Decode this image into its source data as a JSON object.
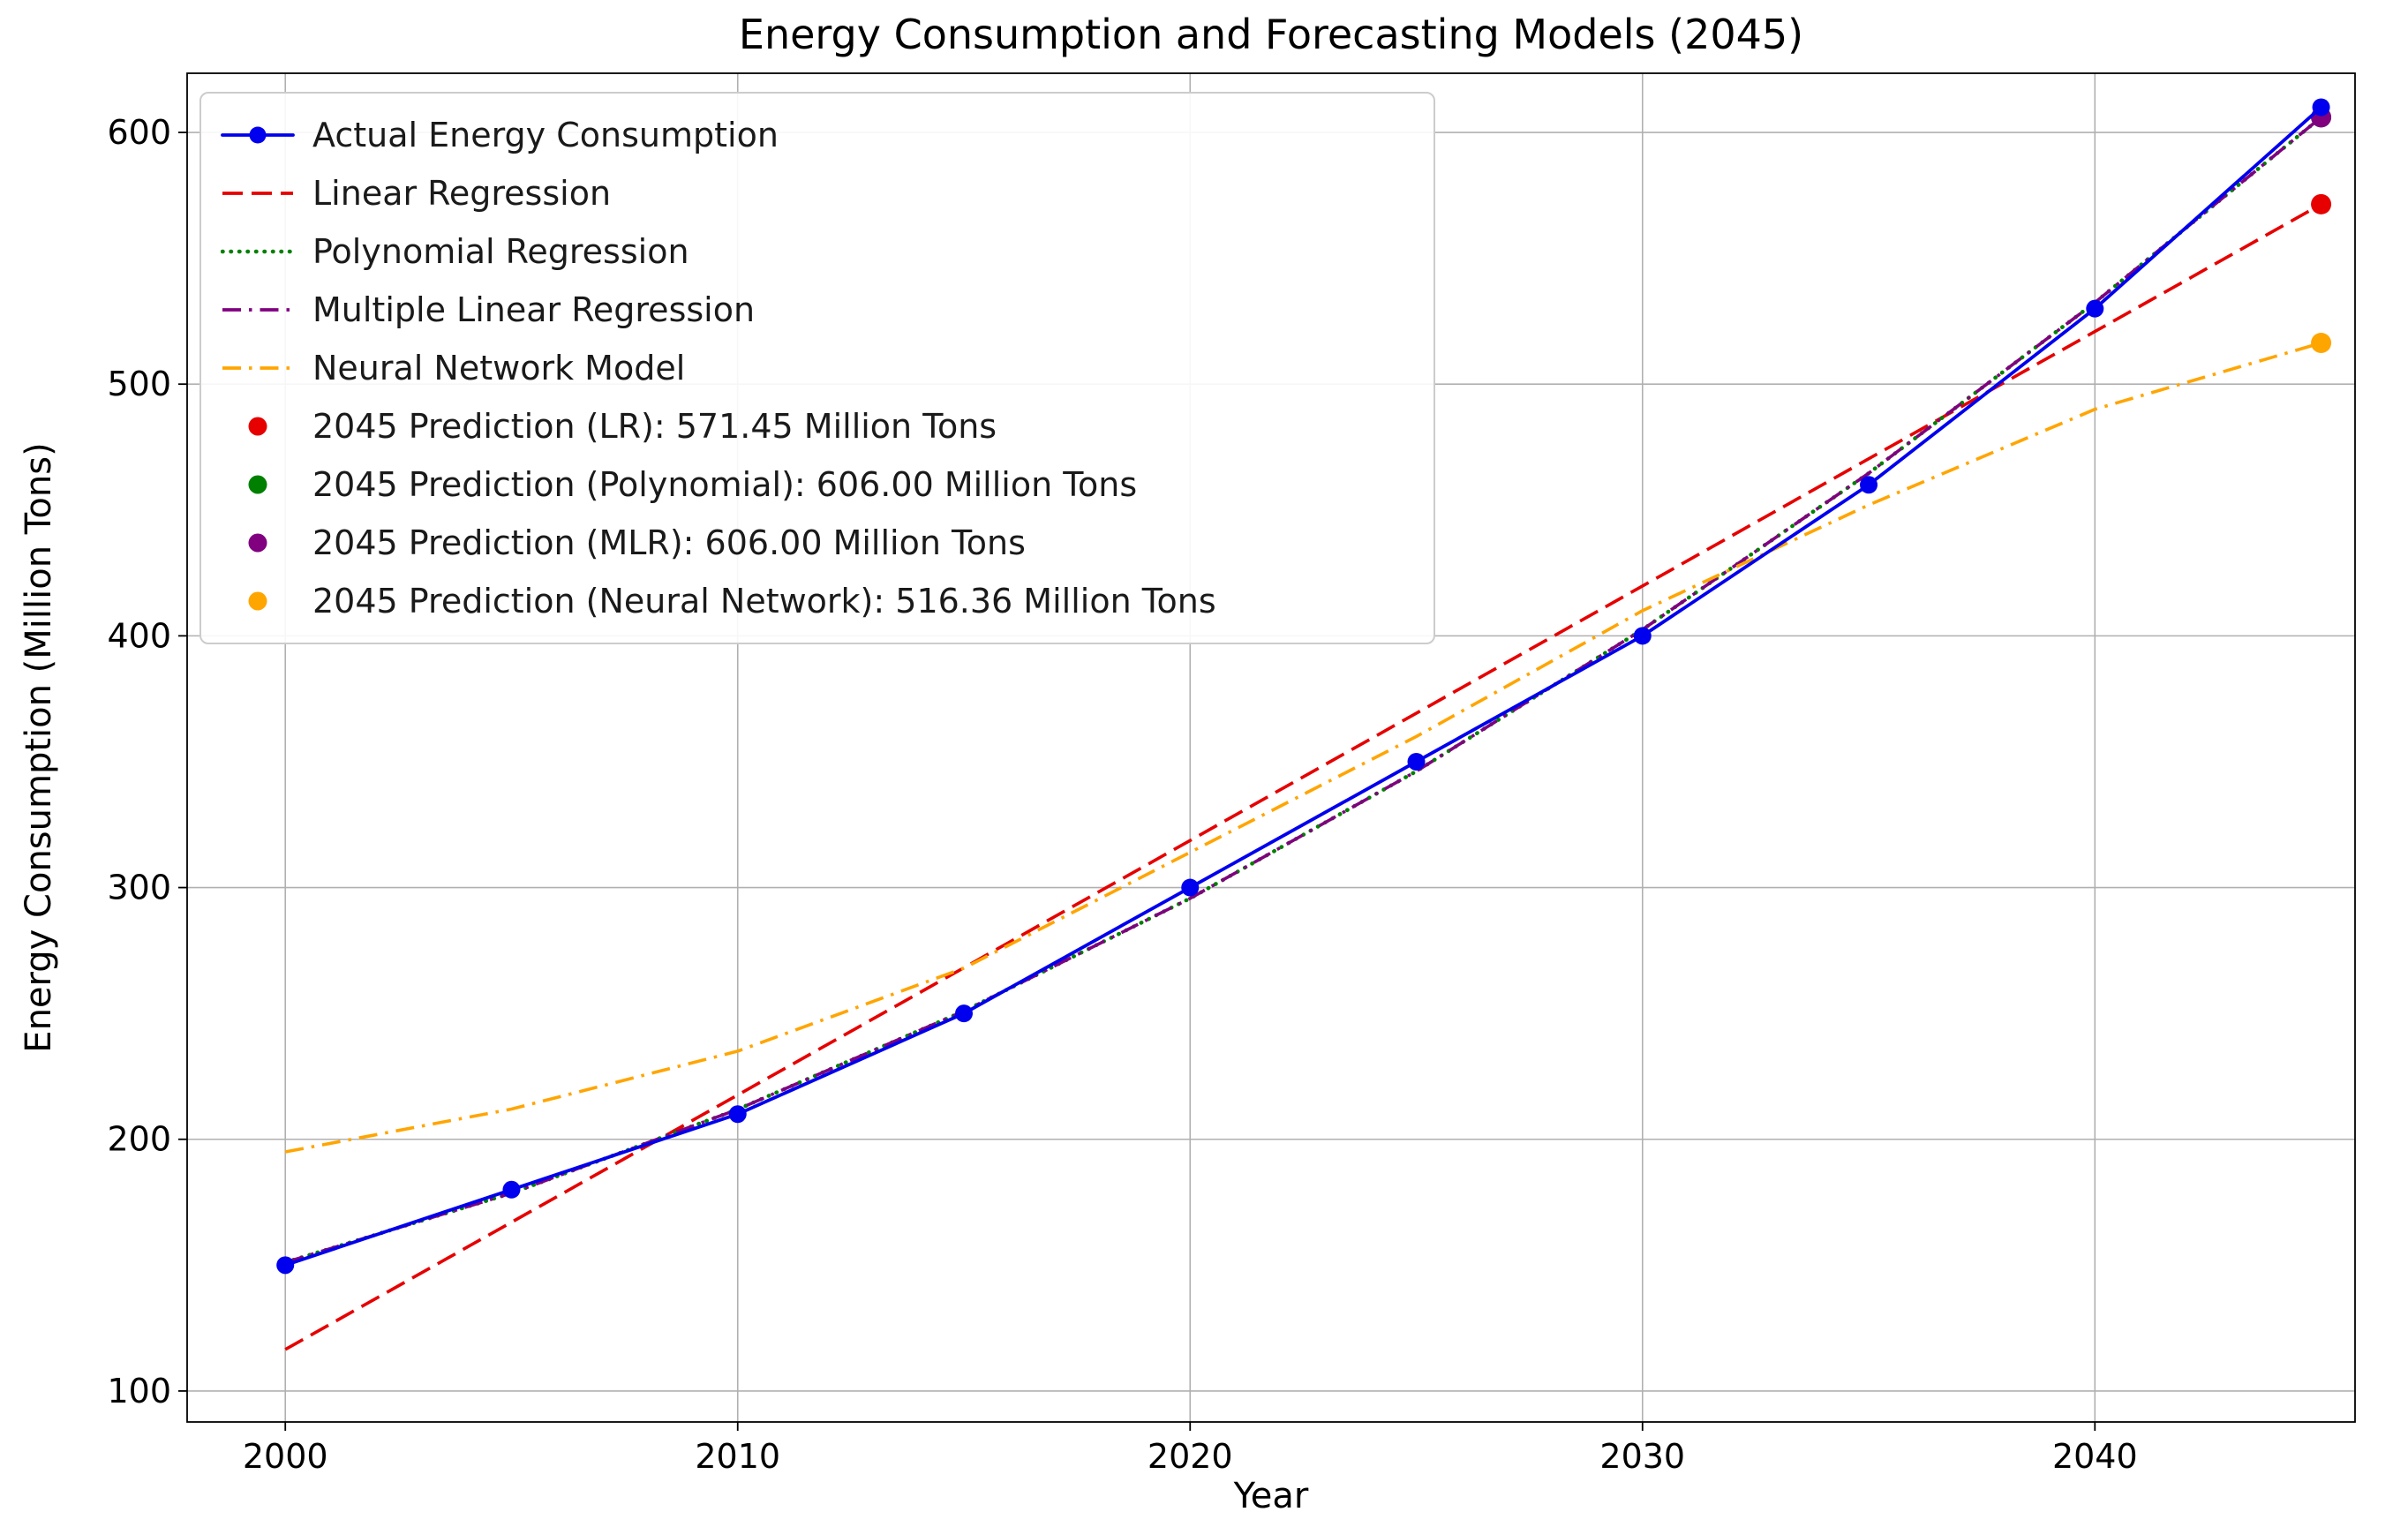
{
  "chart": {
    "title": "Energy Consumption and Forecasting Models (2045)",
    "xlabel": "Year",
    "ylabel": "Energy Consumption (Million Tons)"
  },
  "chart_data": {
    "type": "line",
    "title": "Energy Consumption and Forecasting Models (2045)",
    "xlabel": "Year",
    "ylabel": "Energy Consumption (Million Tons)",
    "grid": true,
    "legend_position": "upper left",
    "x_ticks": [
      2000,
      2010,
      2020,
      2030,
      2040
    ],
    "y_ticks": [
      100,
      200,
      300,
      400,
      500,
      600
    ],
    "xlim": [
      1997.83,
      2045.75
    ],
    "ylim": [
      87.7,
      623.5
    ],
    "series": [
      {
        "name": "Actual Energy Consumption",
        "color": "#0000ee",
        "style": "solid",
        "marker": true,
        "x": [
          2000,
          2005,
          2010,
          2015,
          2020,
          2025,
          2030,
          2035,
          2040,
          2045
        ],
        "y": [
          150,
          180,
          210,
          250,
          300,
          350,
          400,
          460,
          530,
          610
        ]
      },
      {
        "name": "Linear Regression",
        "color": "#e60000",
        "style": "dashed",
        "marker": false,
        "x": [
          2000,
          2045
        ],
        "y": [
          116.5,
          571.45
        ]
      },
      {
        "name": "Polynomial Regression",
        "color": "#008000",
        "style": "dotted",
        "marker": false,
        "x": [
          2000,
          2005,
          2010,
          2015,
          2020,
          2025,
          2030,
          2035,
          2040,
          2045
        ],
        "y": [
          151.1,
          178.6,
          211.9,
          250.9,
          295.7,
          346.2,
          402.5,
          464.6,
          532.4,
          606.0
        ]
      },
      {
        "name": "Multiple Linear Regression",
        "color": "#800080",
        "style": "dashdot",
        "marker": false,
        "x": [
          2000,
          2005,
          2010,
          2015,
          2020,
          2025,
          2030,
          2035,
          2040,
          2045
        ],
        "y": [
          151.1,
          178.6,
          211.9,
          250.9,
          295.7,
          346.2,
          402.5,
          464.6,
          532.4,
          606.0
        ]
      },
      {
        "name": "Neural Network Model",
        "color": "#ffa500",
        "style": "dashdot",
        "marker": false,
        "x": [
          2000,
          2005,
          2010,
          2015,
          2020,
          2025,
          2030,
          2035,
          2040,
          2045
        ],
        "y": [
          195,
          212,
          235,
          268,
          314,
          360,
          410,
          452,
          490,
          516.36
        ]
      }
    ],
    "points": [
      {
        "label": "2045 Prediction (LR): 571.45 Million Tons",
        "color": "#e60000",
        "x": 2045,
        "y": 571.45
      },
      {
        "label": "2045 Prediction (Polynomial): 606.00 Million Tons",
        "color": "#008000",
        "x": 2045,
        "y": 606.0
      },
      {
        "label": "2045 Prediction (MLR): 606.00 Million Tons",
        "color": "#800080",
        "x": 2045,
        "y": 606.0
      },
      {
        "label": "2045 Prediction (Neural Network): 516.36 Million Tons",
        "color": "#ffa500",
        "x": 2045,
        "y": 516.36
      }
    ]
  }
}
